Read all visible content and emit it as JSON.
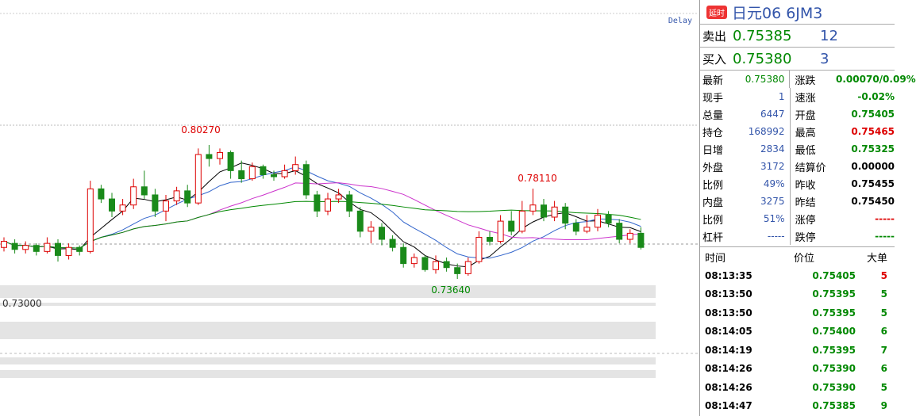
{
  "header": {
    "badge": "延时",
    "title": "日元06  6JM3"
  },
  "chart": {
    "delay": "Delay",
    "annotations": [
      "0.80270",
      "0.78110",
      "0.73640",
      "0.73000"
    ],
    "candles": [
      [
        0.752,
        0.757,
        0.75,
        0.755
      ],
      [
        0.754,
        0.756,
        0.749,
        0.751
      ],
      [
        0.751,
        0.755,
        0.749,
        0.753
      ],
      [
        0.753,
        0.754,
        0.748,
        0.75
      ],
      [
        0.75,
        0.757,
        0.749,
        0.754
      ],
      [
        0.754,
        0.756,
        0.745,
        0.748
      ],
      [
        0.748,
        0.754,
        0.746,
        0.752
      ],
      [
        0.752,
        0.753,
        0.748,
        0.75
      ],
      [
        0.75,
        0.785,
        0.749,
        0.781
      ],
      [
        0.781,
        0.783,
        0.774,
        0.776
      ],
      [
        0.776,
        0.779,
        0.767,
        0.77
      ],
      [
        0.77,
        0.776,
        0.768,
        0.773
      ],
      [
        0.773,
        0.786,
        0.771,
        0.782
      ],
      [
        0.782,
        0.79,
        0.776,
        0.778
      ],
      [
        0.778,
        0.781,
        0.767,
        0.77
      ],
      [
        0.77,
        0.778,
        0.765,
        0.775
      ],
      [
        0.775,
        0.782,
        0.773,
        0.78
      ],
      [
        0.78,
        0.783,
        0.772,
        0.774
      ],
      [
        0.774,
        0.801,
        0.773,
        0.798
      ],
      [
        0.798,
        0.8027,
        0.792,
        0.796
      ],
      [
        0.796,
        0.801,
        0.793,
        0.799
      ],
      [
        0.799,
        0.8,
        0.786,
        0.79
      ],
      [
        0.79,
        0.795,
        0.784,
        0.786
      ],
      [
        0.786,
        0.794,
        0.785,
        0.792
      ],
      [
        0.792,
        0.793,
        0.786,
        0.788
      ],
      [
        0.788,
        0.79,
        0.785,
        0.787
      ],
      [
        0.787,
        0.793,
        0.786,
        0.79
      ],
      [
        0.79,
        0.797,
        0.788,
        0.793
      ],
      [
        0.793,
        0.795,
        0.776,
        0.778
      ],
      [
        0.778,
        0.78,
        0.767,
        0.77
      ],
      [
        0.77,
        0.779,
        0.768,
        0.776
      ],
      [
        0.776,
        0.781,
        0.774,
        0.778
      ],
      [
        0.778,
        0.78,
        0.767,
        0.77
      ],
      [
        0.77,
        0.772,
        0.757,
        0.76
      ],
      [
        0.76,
        0.765,
        0.754,
        0.762
      ],
      [
        0.762,
        0.764,
        0.753,
        0.756
      ],
      [
        0.756,
        0.758,
        0.75,
        0.752
      ],
      [
        0.752,
        0.754,
        0.742,
        0.744
      ],
      [
        0.744,
        0.749,
        0.742,
        0.747
      ],
      [
        0.747,
        0.748,
        0.74,
        0.741
      ],
      [
        0.741,
        0.748,
        0.739,
        0.745
      ],
      [
        0.745,
        0.747,
        0.74,
        0.742
      ],
      [
        0.742,
        0.744,
        0.7364,
        0.739
      ],
      [
        0.739,
        0.747,
        0.738,
        0.745
      ],
      [
        0.745,
        0.76,
        0.744,
        0.757
      ],
      [
        0.757,
        0.76,
        0.753,
        0.755
      ],
      [
        0.755,
        0.768,
        0.754,
        0.765
      ],
      [
        0.765,
        0.77,
        0.758,
        0.76
      ],
      [
        0.76,
        0.775,
        0.759,
        0.77
      ],
      [
        0.77,
        0.7811,
        0.768,
        0.773
      ],
      [
        0.773,
        0.776,
        0.765,
        0.767
      ],
      [
        0.767,
        0.775,
        0.765,
        0.772
      ],
      [
        0.772,
        0.774,
        0.761,
        0.764
      ],
      [
        0.764,
        0.766,
        0.758,
        0.76
      ],
      [
        0.76,
        0.768,
        0.759,
        0.762
      ],
      [
        0.762,
        0.771,
        0.76,
        0.768
      ],
      [
        0.768,
        0.77,
        0.762,
        0.764
      ],
      [
        0.764,
        0.766,
        0.754,
        0.756
      ],
      [
        0.756,
        0.761,
        0.754,
        0.759
      ],
      [
        0.759,
        0.762,
        0.751,
        0.752
      ]
    ]
  },
  "ask": {
    "label": "卖出",
    "price": "0.75385",
    "volume": "12"
  },
  "bid": {
    "label": "买入",
    "price": "0.75380",
    "volume": "3"
  },
  "quote": [
    [
      "最新",
      "0.75380",
      "涨跌",
      "0.00070/0.09%"
    ],
    [
      "现手",
      "1",
      "速涨",
      "-0.02%"
    ],
    [
      "总量",
      "6447",
      "开盘",
      "0.75405"
    ],
    [
      "持仓",
      "168992",
      "最高",
      "0.75465"
    ],
    [
      "日增",
      "2834",
      "最低",
      "0.75325"
    ],
    [
      "外盘",
      "3172",
      "结算价",
      "0.00000"
    ],
    [
      "比例",
      "49%",
      "昨收",
      "0.75455"
    ],
    [
      "内盘",
      "3275",
      "昨结",
      "0.75450"
    ],
    [
      "比例",
      "51%",
      "涨停",
      "-----"
    ],
    [
      "杠杆",
      "-----",
      "跌停",
      "-----"
    ]
  ],
  "trades": {
    "headers": [
      "时间",
      "价位",
      "大单"
    ],
    "rows": [
      [
        "08:13:35",
        "0.75405",
        "5"
      ],
      [
        "08:13:50",
        "0.75395",
        "5"
      ],
      [
        "08:13:50",
        "0.75395",
        "5"
      ],
      [
        "08:14:05",
        "0.75400",
        "6"
      ],
      [
        "08:14:19",
        "0.75395",
        "7"
      ],
      [
        "08:14:26",
        "0.75390",
        "6"
      ],
      [
        "08:14:26",
        "0.75390",
        "5"
      ],
      [
        "08:14:47",
        "0.75385",
        "9"
      ]
    ]
  }
}
